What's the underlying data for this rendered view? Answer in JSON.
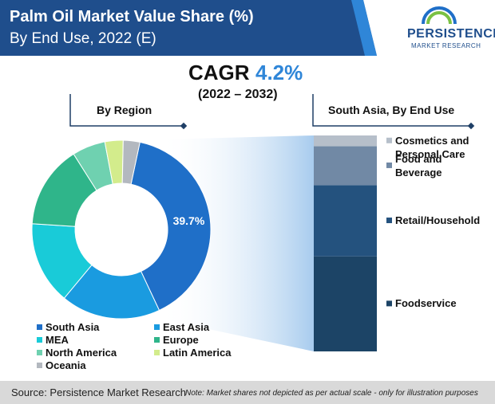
{
  "header": {
    "title": "Palm Oil Market Value Share (%)",
    "subtitle": "By End Use, 2022 (E)"
  },
  "logo": {
    "name": "PERSISTENCE",
    "tagline": "MARKET RESEARCH"
  },
  "cagr": {
    "label": "CAGR",
    "value": "4.2%",
    "period": "(2022 – 2032)"
  },
  "chart_data": [
    {
      "type": "pie",
      "title": "By Region",
      "categories": [
        "South Asia",
        "East Asia",
        "MEA",
        "Europe",
        "North America",
        "Latin America",
        "Oceania"
      ],
      "values": [
        39.7,
        18,
        15,
        15,
        6,
        3.3,
        3
      ],
      "value_labels": [
        "39.7%",
        null,
        null,
        null,
        null,
        null,
        null
      ],
      "colors": [
        "#1f6fc8",
        "#1a9be0",
        "#19cbd8",
        "#2fb58a",
        "#6fd1b0",
        "#d3ec8c",
        "#b3b8bf"
      ],
      "donut": true
    },
    {
      "type": "stacked_bar",
      "title": "South Asia, By End Use",
      "series": [
        {
          "name": "Foodservice",
          "color": "#1c4466",
          "values": [
            44
          ]
        },
        {
          "name": "Retail/Household",
          "color": "#24527e",
          "values": [
            33
          ]
        },
        {
          "name": "Food and Beverage",
          "color": "#7189a5",
          "values": [
            18
          ]
        },
        {
          "name": "Cosmetics and Personal Care",
          "color": "#b6bfca",
          "values": [
            5
          ]
        }
      ]
    }
  ],
  "footer": {
    "source": "Source: Persistence Market Research",
    "note": "Note: Market shares not depicted as per actual scale - only for illustration purposes"
  }
}
